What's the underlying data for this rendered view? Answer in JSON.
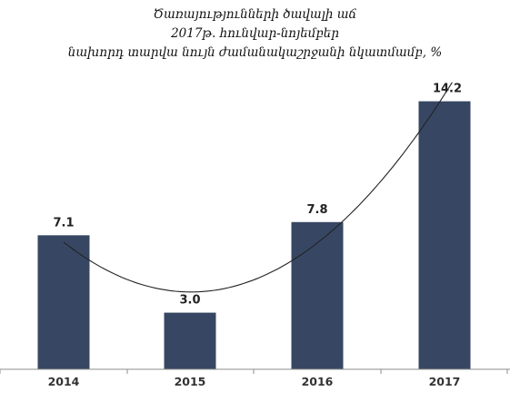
{
  "chart_data": {
    "type": "bar",
    "title_lines": [
      "Ծառայությունների ծավալի աճ",
      "2017թ. հունվար-նոյեմբեր",
      "նախորդ տարվա նույն ժամանակաշրջանի նկատմամբ, %"
    ],
    "categories": [
      "2014",
      "2015",
      "2016",
      "2017"
    ],
    "values": [
      7.1,
      3.0,
      7.8,
      14.2
    ],
    "value_labels": [
      "7.1",
      "3.0",
      "7.8",
      "14.2"
    ],
    "bar_color": "#374763",
    "trendline": {
      "type": "polynomial",
      "color": "#222222"
    },
    "ylim": [
      0,
      15
    ],
    "grid": false,
    "legend": "none"
  }
}
